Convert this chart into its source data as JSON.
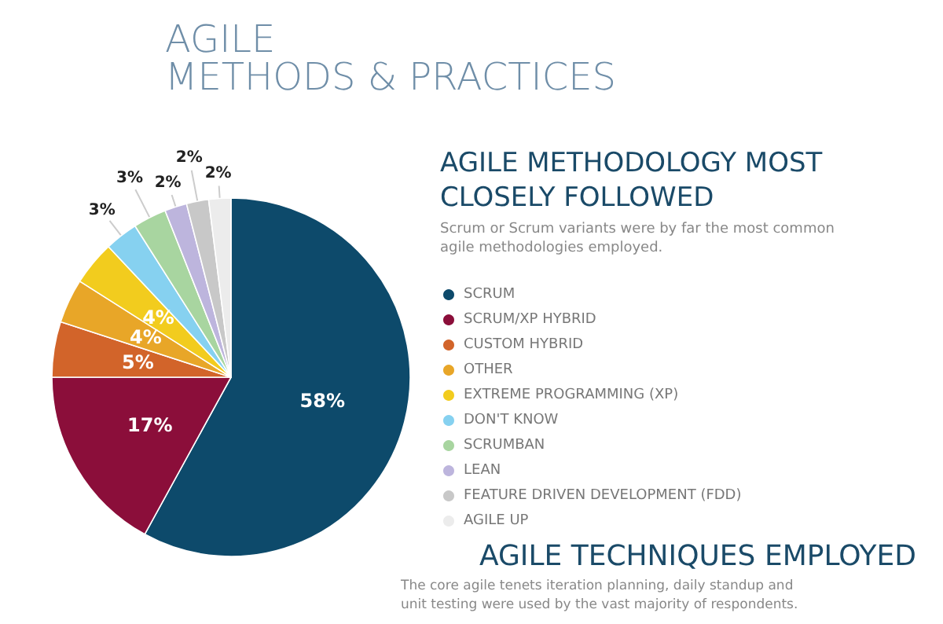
{
  "chart_data": {
    "type": "pie",
    "title": "AGILE\nMETHODS & PRACTICES",
    "subtitle": "AGILE METHODOLOGY MOST CLOSELY FOLLOWED",
    "annotations": [
      "Scrum or Scrum variants were by far the most common agile methodologies employed.",
      "AGILE TECHNIQUES EMPLOYED",
      "The core agile tenets iteration planning, daily standup and unit testing were used by the vast majority of respondents."
    ],
    "categories": [
      "SCRUM",
      "SCRUM/XP HYBRID",
      "CUSTOM HYBRID",
      "OTHER",
      "EXTREME PROGRAMMING (XP)",
      "DON'T KNOW",
      "SCRUMBAN",
      "LEAN",
      "FEATURE DRIVEN DEVELOPMENT (FDD)",
      "AGILE UP"
    ],
    "values": [
      58,
      17,
      5,
      4,
      4,
      3,
      3,
      2,
      2,
      2
    ],
    "colors": [
      "#0d4a6b",
      "#8b0e3a",
      "#d2642a",
      "#e8a628",
      "#f2cc1e",
      "#86d1f0",
      "#a8d5a0",
      "#bdb5dd",
      "#c8c8c8",
      "#ececec"
    ],
    "value_labels": [
      "58%",
      "17%",
      "5%",
      "4%",
      "4%",
      "3%",
      "3%",
      "2%",
      "2%",
      "2%"
    ],
    "data_labels": true,
    "legend": "right"
  }
}
